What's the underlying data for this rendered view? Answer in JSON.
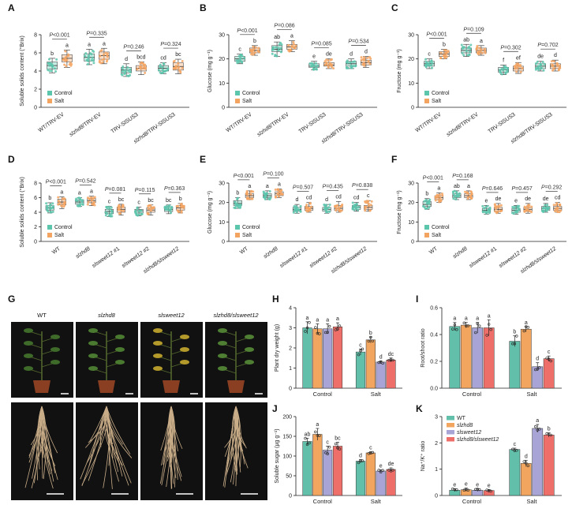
{
  "colors": {
    "control": "#5cc6ad",
    "salt": "#f4a461",
    "wt": "#62c0aa",
    "slzhd8": "#f2a55e",
    "slsweet12": "#a8a4d6",
    "double": "#ee6f6a",
    "axis": "#222222",
    "pval": "#333333"
  },
  "legend_control_salt": {
    "control": "Control",
    "salt": "Salt"
  },
  "chart_data": [
    {
      "panel": "A",
      "type": "box",
      "ylabel": "Soluble solids content (°Brix)",
      "ylim": [
        0,
        8
      ],
      "yticks": [
        0,
        2,
        4,
        6,
        8
      ],
      "categories": [
        "WT/TRV-EV",
        "slzhd8/TRV-EV",
        "TRV-SlSUS3",
        "slzhd8/TRV-SlSUS3"
      ],
      "italic_prefix": [
        "",
        "slzhd8",
        "",
        "slzhd8"
      ],
      "series": [
        {
          "name": "Control",
          "stats": [
            [
              3.8,
              4.2,
              4.6,
              5.0,
              5.4
            ],
            [
              4.7,
              5.1,
              5.5,
              5.9,
              6.4
            ],
            [
              3.4,
              3.8,
              4.1,
              4.4,
              4.8
            ],
            [
              3.7,
              4.0,
              4.3,
              4.6,
              4.9
            ]
          ]
        },
        {
          "name": "Salt",
          "stats": [
            [
              4.4,
              5.0,
              5.4,
              5.8,
              6.3
            ],
            [
              4.8,
              5.3,
              5.7,
              6.1,
              6.5
            ],
            [
              3.6,
              4.0,
              4.3,
              4.6,
              5.0
            ],
            [
              3.7,
              4.1,
              4.5,
              4.9,
              5.3
            ]
          ]
        }
      ],
      "letters": [
        [
          "b",
          "a"
        ],
        [
          "a",
          "a"
        ],
        [
          "d",
          "bcd"
        ],
        [
          "cd",
          "bc"
        ]
      ],
      "pvalues": [
        "P<0.001",
        "P=0.335",
        "P=0.246",
        "P=0.324"
      ]
    },
    {
      "panel": "B",
      "type": "box",
      "ylabel": "Glucose (mg g⁻¹)",
      "ylim": [
        0,
        30
      ],
      "yticks": [
        0,
        10,
        20,
        30
      ],
      "categories": [
        "WT/TRV-EV",
        "slzhd8/TRV-EV",
        "TRV-SlSUS3",
        "slzhd8/TRV-SlSUS3"
      ],
      "italic_prefix": [
        "",
        "slzhd8",
        "",
        "slzhd8"
      ],
      "series": [
        {
          "name": "Control",
          "stats": [
            [
              18.0,
              19.0,
              20.0,
              21.0,
              22.0
            ],
            [
              21.0,
              23.0,
              24.0,
              25.5,
              27.0
            ],
            [
              15.5,
              16.5,
              17.0,
              18.0,
              19.0
            ],
            [
              16.0,
              17.0,
              18.0,
              19.0,
              20.0
            ]
          ]
        },
        {
          "name": "Salt",
          "stats": [
            [
              21.5,
              22.5,
              23.5,
              24.5,
              25.5
            ],
            [
              23.0,
              24.0,
              25.0,
              26.0,
              27.5
            ],
            [
              16.0,
              17.0,
              17.5,
              18.5,
              20.0
            ],
            [
              16.5,
              17.5,
              18.5,
              19.5,
              21.0
            ]
          ]
        }
      ],
      "letters": [
        [
          "c",
          "b"
        ],
        [
          "ab",
          "a"
        ],
        [
          "e",
          "de"
        ],
        [
          "d",
          "d"
        ]
      ],
      "pvalues": [
        "P<0.001",
        "P=0.086",
        "P=0.085",
        "P=0.534"
      ]
    },
    {
      "panel": "C",
      "type": "box",
      "ylabel": "Fructose (mg g⁻¹)",
      "ylim": [
        0,
        30
      ],
      "yticks": [
        0,
        10,
        20,
        30
      ],
      "categories": [
        "WT/TRV-EV",
        "slzhd8/TRV-EV",
        "TRV-SlSUS3",
        "slzhd8/TRV-SlSUS3"
      ],
      "italic_prefix": [
        "",
        "slzhd8",
        "",
        "slzhd8"
      ],
      "series": [
        {
          "name": "Control",
          "stats": [
            [
              16.0,
              17.0,
              18.0,
              19.0,
              20.0
            ],
            [
              21.0,
              22.5,
              23.5,
              24.5,
              26.0
            ],
            [
              13.5,
              14.5,
              15.5,
              16.5,
              17.5
            ],
            [
              15.0,
              16.0,
              17.0,
              18.0,
              19.0
            ]
          ]
        },
        {
          "name": "Salt",
          "stats": [
            [
              20.0,
              21.0,
              22.0,
              23.0,
              24.0
            ],
            [
              21.5,
              22.5,
              23.5,
              24.5,
              25.5
            ],
            [
              14.0,
              15.0,
              16.0,
              17.0,
              18.5
            ],
            [
              15.0,
              16.0,
              17.0,
              18.0,
              19.5
            ]
          ]
        }
      ],
      "letters": [
        [
          "c",
          "b"
        ],
        [
          "ab",
          "a"
        ],
        [
          "f",
          "ef"
        ],
        [
          "de",
          "d"
        ]
      ],
      "pvalues": [
        "P<0.001",
        "P=0.109",
        "P=0.302",
        "P=0.702"
      ]
    },
    {
      "panel": "D",
      "type": "box",
      "ylabel": "Soluble solids content (°Brix)",
      "ylim": [
        0,
        8
      ],
      "yticks": [
        0,
        2,
        4,
        6,
        8
      ],
      "categories": [
        "WT",
        "slzhd8",
        "slsweet12 #1",
        "slsweet12 #2",
        "slzhd8/slsweet12"
      ],
      "italic_prefix": [
        "",
        "slzhd8",
        "slsweet12",
        "slsweet12",
        "slzhd8/slsweet12"
      ],
      "series": [
        {
          "name": "Control",
          "stats": [
            [
              3.9,
              4.3,
              4.6,
              4.9,
              5.3
            ],
            [
              4.8,
              5.1,
              5.4,
              5.7,
              6.0
            ],
            [
              3.4,
              3.8,
              4.1,
              4.4,
              4.8
            ],
            [
              3.5,
              3.9,
              4.2,
              4.4,
              4.7
            ],
            [
              3.8,
              4.1,
              4.4,
              4.7,
              5.0
            ]
          ]
        },
        {
          "name": "Salt",
          "stats": [
            [
              4.5,
              5.0,
              5.4,
              5.8,
              6.1
            ],
            [
              4.9,
              5.3,
              5.6,
              5.9,
              6.2
            ],
            [
              3.6,
              4.0,
              4.4,
              4.7,
              5.1
            ],
            [
              3.6,
              4.0,
              4.3,
              4.6,
              5.0
            ],
            [
              3.9,
              4.3,
              4.6,
              4.9,
              5.2
            ]
          ]
        }
      ],
      "letters": [
        [
          "b",
          "a"
        ],
        [
          "a",
          "a"
        ],
        [
          "c",
          "bc"
        ],
        [
          "c",
          "bc"
        ],
        [
          "bc",
          "b"
        ]
      ],
      "pvalues": [
        "P<0.001",
        "P=0.542",
        "P=0.081",
        "P=0.115",
        "P=0.363"
      ]
    },
    {
      "panel": "E",
      "type": "box",
      "ylabel": "Glucose (mg g⁻¹)",
      "ylim": [
        0,
        30
      ],
      "yticks": [
        0,
        10,
        20,
        30
      ],
      "categories": [
        "WT",
        "slzhd8",
        "slsweet12 #1",
        "slsweet12 #2",
        "slzhd8/slsweet12"
      ],
      "italic_prefix": [
        "",
        "slzhd8",
        "slsweet12",
        "slsweet12",
        "slzhd8/slsweet12"
      ],
      "series": [
        {
          "name": "Control",
          "stats": [
            [
              17.0,
              18.5,
              19.5,
              21.0,
              22.5
            ],
            [
              21.5,
              22.5,
              23.5,
              24.5,
              26.0
            ],
            [
              14.5,
              15.5,
              16.5,
              17.5,
              19.0
            ],
            [
              14.5,
              15.5,
              16.5,
              17.5,
              19.0
            ],
            [
              15.5,
              16.5,
              17.5,
              18.5,
              20.0
            ]
          ]
        },
        {
          "name": "Salt",
          "stats": [
            [
              21.5,
              22.5,
              23.5,
              24.5,
              26.0
            ],
            [
              22.5,
              23.5,
              24.5,
              25.5,
              27.0
            ],
            [
              15.0,
              16.0,
              17.0,
              18.0,
              20.0
            ],
            [
              15.0,
              16.0,
              17.0,
              18.5,
              20.5
            ],
            [
              15.5,
              16.5,
              17.5,
              18.5,
              21.0
            ]
          ]
        }
      ],
      "letters": [
        [
          "b",
          "a"
        ],
        [
          "a",
          "a"
        ],
        [
          "d",
          "cd"
        ],
        [
          "d",
          "cd"
        ],
        [
          "cd",
          "c"
        ]
      ],
      "pvalues": [
        "P<0.001",
        "P=0.100",
        "P=0.507",
        "P=0.435",
        "P=0.838"
      ]
    },
    {
      "panel": "F",
      "type": "box",
      "ylabel": "Fructose (mg g⁻¹)",
      "ylim": [
        0,
        30
      ],
      "yticks": [
        0,
        10,
        20,
        30
      ],
      "categories": [
        "WT",
        "slzhd8",
        "slsweet12 #1",
        "slsweet12 #2",
        "slzhd8/slsweet12"
      ],
      "italic_prefix": [
        "",
        "slzhd8",
        "slsweet12",
        "slsweet12",
        "slzhd8/slsweet12"
      ],
      "series": [
        {
          "name": "Control",
          "stats": [
            [
              16.5,
              18.0,
              19.0,
              20.5,
              22.0
            ],
            [
              21.5,
              22.5,
              23.5,
              24.5,
              26.0
            ],
            [
              14.0,
              15.0,
              16.0,
              17.0,
              18.5
            ],
            [
              14.0,
              15.0,
              16.0,
              17.0,
              18.5
            ],
            [
              15.0,
              16.0,
              17.0,
              18.0,
              19.5
            ]
          ]
        },
        {
          "name": "Salt",
          "stats": [
            [
              20.0,
              21.5,
              22.5,
              23.5,
              25.0
            ],
            [
              21.5,
              22.5,
              23.5,
              24.5,
              26.0
            ],
            [
              14.5,
              15.5,
              16.5,
              17.5,
              19.5
            ],
            [
              14.5,
              15.5,
              16.5,
              17.5,
              19.5
            ],
            [
              15.0,
              16.0,
              17.0,
              18.0,
              20.0
            ]
          ]
        }
      ],
      "letters": [
        [
          "b",
          "a"
        ],
        [
          "ab",
          "a"
        ],
        [
          "e",
          "de"
        ],
        [
          "e",
          "de"
        ],
        [
          "de",
          "cd"
        ]
      ],
      "pvalues": [
        "P<0.001",
        "P=0.168",
        "P=0.646",
        "P=0.457",
        "P=0.292"
      ]
    },
    {
      "panel": "H",
      "type": "bar",
      "ylabel": "Plant dry weight (g)",
      "ylim": [
        0,
        4
      ],
      "yticks": [
        0,
        1,
        2,
        3,
        4
      ],
      "groups": [
        "Control",
        "Salt"
      ],
      "series_names": [
        "WT",
        "slzhd8",
        "slsweet12",
        "slzhd8/slsweet12"
      ],
      "values": [
        [
          3.0,
          2.95,
          2.95,
          3.05
        ],
        [
          1.8,
          2.4,
          1.3,
          1.4
        ]
      ],
      "errors": [
        [
          0.3,
          0.25,
          0.25,
          0.2
        ],
        [
          0.15,
          0.15,
          0.06,
          0.1
        ]
      ],
      "letters": [
        [
          "a",
          "a",
          "a",
          "a"
        ],
        [
          "c",
          "b",
          "d",
          "dc"
        ]
      ]
    },
    {
      "panel": "I",
      "type": "bar",
      "ylabel": "Root/shoot ratio",
      "ylim": [
        0,
        0.6
      ],
      "yticks": [
        0.0,
        0.2,
        0.4,
        0.6
      ],
      "groups": [
        "Control",
        "Salt"
      ],
      "series_names": [
        "WT",
        "slzhd8",
        "slsweet12",
        "slzhd8/slsweet12"
      ],
      "values": [
        [
          0.46,
          0.47,
          0.45,
          0.45
        ],
        [
          0.35,
          0.44,
          0.16,
          0.22
        ]
      ],
      "errors": [
        [
          0.03,
          0.02,
          0.04,
          0.06
        ],
        [
          0.04,
          0.02,
          0.03,
          0.02
        ]
      ],
      "letters": [
        [
          "a",
          "a",
          "a",
          "a"
        ],
        [
          "b",
          "a",
          "d",
          "c"
        ]
      ]
    },
    {
      "panel": "J",
      "type": "bar",
      "ylabel": "Soluble sugar (μg g⁻¹)",
      "ylim": [
        0,
        200
      ],
      "yticks": [
        0,
        50,
        100,
        150,
        200
      ],
      "groups": [
        "Control",
        "Salt"
      ],
      "series_names": [
        "WT",
        "slzhd8",
        "slsweet12",
        "slzhd8/slsweet12"
      ],
      "values": [
        [
          137,
          155,
          115,
          125
        ],
        [
          87,
          108,
          62,
          66
        ]
      ],
      "errors": [
        [
          8,
          15,
          10,
          10
        ],
        [
          4,
          3,
          3,
          4
        ]
      ],
      "letters": [
        [
          "ab",
          "a",
          "c",
          "bc"
        ],
        [
          "d",
          "c",
          "e",
          "de"
        ]
      ]
    },
    {
      "panel": "K",
      "type": "bar",
      "ylabel": "Na⁺/K⁺ ratio",
      "ylim": [
        0,
        3
      ],
      "yticks": [
        0,
        1,
        2,
        3
      ],
      "groups": [
        "Control",
        "Salt"
      ],
      "series_names": [
        "WT",
        "slzhd8",
        "slsweet12",
        "slzhd8/slsweet12"
      ],
      "values": [
        [
          0.2,
          0.22,
          0.2,
          0.19
        ],
        [
          1.75,
          1.22,
          2.55,
          2.3
        ]
      ],
      "errors": [
        [
          0.05,
          0.06,
          0.05,
          0.04
        ],
        [
          0.05,
          0.12,
          0.15,
          0.08
        ]
      ],
      "letters": [
        [
          "e",
          "e",
          "e",
          "e"
        ],
        [
          "c",
          "d",
          "a",
          "b"
        ]
      ],
      "legend": [
        "WT",
        "slzhd8",
        "slsweet12",
        "slzhd8/slsweet12"
      ]
    }
  ],
  "panel_g": {
    "label": "G",
    "genotypes": [
      "WT",
      "slzhd8",
      "slsweet12",
      "slzhd8/slsweet12"
    ],
    "italic": [
      false,
      true,
      true,
      true
    ]
  }
}
